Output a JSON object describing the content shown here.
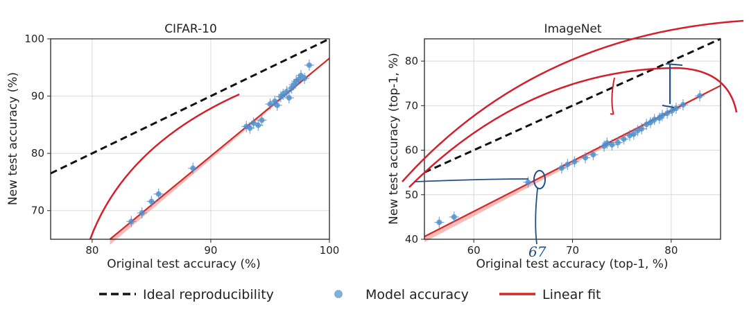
{
  "colors": {
    "ideal": "#111111",
    "model": "#4d8fcc",
    "fit": "#d62728",
    "fit_band": "#f2a5a0",
    "ink_red": "#d41e2a",
    "ink_blue": "#1f4e8c",
    "grid": "#d9d9d9"
  },
  "legend": {
    "ideal_label": "Ideal reproducibility",
    "model_label": "Model accuracy",
    "fit_label": "Linear fit"
  },
  "annotations": {
    "handwritten_note": "67"
  },
  "chart_data": [
    {
      "type": "scatter",
      "title": "CIFAR-10",
      "xlabel": "Original test accuracy (%)",
      "ylabel": "New test accuracy (%)",
      "xlim": [
        76.5,
        100
      ],
      "ylim": [
        65,
        100
      ],
      "xticks": [
        80,
        90,
        100
      ],
      "yticks": [
        70,
        80,
        90,
        100
      ],
      "grid": true,
      "ideal": [
        [
          76.5,
          76.5
        ],
        [
          100,
          100
        ]
      ],
      "fit": [
        [
          81.5,
          65
        ],
        [
          100,
          96.6
        ]
      ],
      "series": [
        {
          "name": "Model accuracy",
          "points": [
            [
              83.3,
              68.1
            ],
            [
              84.2,
              69.6
            ],
            [
              85.0,
              71.6
            ],
            [
              85.6,
              72.9
            ],
            [
              88.5,
              77.4
            ],
            [
              93.0,
              84.7
            ],
            [
              93.3,
              84.4
            ],
            [
              93.6,
              85.3
            ],
            [
              94.0,
              84.9
            ],
            [
              94.3,
              85.8
            ],
            [
              95.0,
              88.6
            ],
            [
              95.4,
              89.1
            ],
            [
              95.6,
              88.4
            ],
            [
              95.9,
              89.9
            ],
            [
              96.1,
              90.3
            ],
            [
              96.4,
              90.8
            ],
            [
              96.6,
              89.7
            ],
            [
              96.8,
              91.4
            ],
            [
              97.0,
              92.0
            ],
            [
              97.2,
              92.6
            ],
            [
              97.4,
              92.9
            ],
            [
              97.6,
              93.6
            ],
            [
              97.9,
              93.1
            ],
            [
              98.3,
              95.4
            ]
          ]
        }
      ]
    },
    {
      "type": "scatter",
      "title": "ImageNet",
      "xlabel": "Original test accuracy (top-1, %)",
      "ylabel": "New test accuracy (top-1, %)",
      "xlim": [
        55,
        85
      ],
      "ylim": [
        40,
        85
      ],
      "xticks": [
        60,
        70,
        80
      ],
      "yticks": [
        40,
        50,
        60,
        70,
        80
      ],
      "grid": true,
      "ideal": [
        [
          55,
          55
        ],
        [
          85,
          85
        ]
      ],
      "fit": [
        [
          55,
          40.6
        ],
        [
          85,
          74.5
        ]
      ],
      "series": [
        {
          "name": "Model accuracy",
          "points": [
            [
              56.5,
              43.8
            ],
            [
              58.0,
              45.0
            ],
            [
              65.5,
              52.8
            ],
            [
              68.9,
              56.0
            ],
            [
              69.5,
              56.8
            ],
            [
              70.2,
              57.4
            ],
            [
              71.3,
              58.3
            ],
            [
              72.1,
              59.0
            ],
            [
              73.2,
              60.9
            ],
            [
              73.5,
              61.6
            ],
            [
              74.0,
              61.2
            ],
            [
              74.6,
              61.7
            ],
            [
              75.2,
              62.5
            ],
            [
              75.8,
              63.3
            ],
            [
              76.2,
              63.6
            ],
            [
              76.6,
              64.4
            ],
            [
              77.0,
              64.8
            ],
            [
              77.5,
              65.8
            ],
            [
              77.9,
              66.2
            ],
            [
              78.3,
              66.9
            ],
            [
              78.8,
              67.2
            ],
            [
              79.1,
              67.8
            ],
            [
              79.6,
              68.3
            ],
            [
              80.1,
              68.9
            ],
            [
              80.5,
              69.4
            ],
            [
              81.2,
              70.2
            ],
            [
              82.9,
              72.2
            ]
          ]
        }
      ]
    }
  ]
}
